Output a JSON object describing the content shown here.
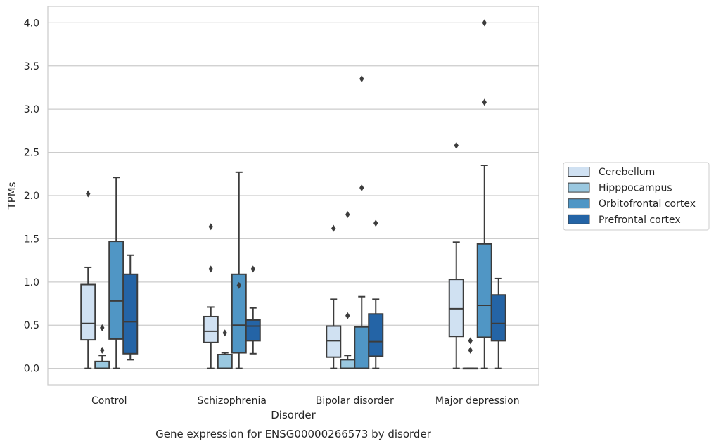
{
  "caption": "Gene expression for ENSG00000266573 by disorder",
  "chart_data": {
    "type": "box",
    "title": "",
    "xlabel": "Disorder",
    "ylabel": "TPMs",
    "ylim": [
      -0.19,
      4.19
    ],
    "yticks": [
      0.0,
      0.5,
      1.0,
      1.5,
      2.0,
      2.5,
      3.0,
      3.5,
      4.0
    ],
    "ytick_labels": [
      "0.0",
      "0.5",
      "1.0",
      "1.5",
      "2.0",
      "2.5",
      "3.0",
      "3.5",
      "4.0"
    ],
    "categories": [
      "Control",
      "Schizophrenia",
      "Bipolar disorder",
      "Major depression"
    ],
    "grid": "horizontal",
    "legend_position": "right",
    "series": [
      {
        "name": "Cerebellum",
        "color": "#d0e1f2",
        "boxes": [
          {
            "whislo": 0.0,
            "q1": 0.33,
            "med": 0.52,
            "q3": 0.97,
            "whishi": 1.17,
            "fliers": [
              2.02
            ]
          },
          {
            "whislo": 0.0,
            "q1": 0.3,
            "med": 0.43,
            "q3": 0.6,
            "whishi": 0.71,
            "fliers": [
              1.15,
              1.64
            ]
          },
          {
            "whislo": 0.0,
            "q1": 0.13,
            "med": 0.32,
            "q3": 0.49,
            "whishi": 0.8,
            "fliers": [
              1.62
            ]
          },
          {
            "whislo": 0.0,
            "q1": 0.37,
            "med": 0.69,
            "q3": 1.03,
            "whishi": 1.46,
            "fliers": [
              2.58
            ]
          }
        ]
      },
      {
        "name": "Hipppocampus",
        "color": "#9ac8e0",
        "boxes": [
          {
            "whislo": 0.0,
            "q1": 0.0,
            "med": 0.0,
            "q3": 0.08,
            "whishi": 0.15,
            "fliers": [
              0.21,
              0.47
            ]
          },
          {
            "whislo": 0.0,
            "q1": 0.0,
            "med": 0.0,
            "q3": 0.16,
            "whishi": 0.18,
            "fliers": [
              0.41
            ]
          },
          {
            "whislo": 0.0,
            "q1": 0.0,
            "med": 0.0,
            "q3": 0.1,
            "whishi": 0.15,
            "fliers": [
              0.61,
              1.78
            ]
          },
          {
            "whislo": 0.0,
            "q1": 0.0,
            "med": 0.0,
            "q3": 0.0,
            "whishi": 0.0,
            "fliers": [
              0.21,
              0.32
            ]
          }
        ]
      },
      {
        "name": "Orbitofrontal cortex",
        "color": "#5096c5",
        "boxes": [
          {
            "whislo": 0.0,
            "q1": 0.34,
            "med": 0.78,
            "q3": 1.47,
            "whishi": 2.21,
            "fliers": []
          },
          {
            "whislo": 0.0,
            "q1": 0.18,
            "med": 0.5,
            "q3": 1.09,
            "whishi": 2.27,
            "fliers": [
              0.96
            ]
          },
          {
            "whislo": 0.0,
            "q1": 0.0,
            "med": 0.0,
            "q3": 0.48,
            "whishi": 0.83,
            "fliers": [
              2.09,
              3.35
            ]
          },
          {
            "whislo": 0.0,
            "q1": 0.36,
            "med": 0.73,
            "q3": 1.44,
            "whishi": 2.35,
            "fliers": [
              3.08,
              4.0
            ]
          }
        ]
      },
      {
        "name": "Prefrontal cortex",
        "color": "#2464a6",
        "boxes": [
          {
            "whislo": 0.1,
            "q1": 0.17,
            "med": 0.54,
            "q3": 1.09,
            "whishi": 1.31,
            "fliers": []
          },
          {
            "whislo": 0.17,
            "q1": 0.32,
            "med": 0.49,
            "q3": 0.56,
            "whishi": 0.7,
            "fliers": [
              1.15
            ]
          },
          {
            "whislo": 0.0,
            "q1": 0.14,
            "med": 0.31,
            "q3": 0.63,
            "whishi": 0.8,
            "fliers": [
              1.68
            ]
          },
          {
            "whislo": 0.0,
            "q1": 0.32,
            "med": 0.52,
            "q3": 0.85,
            "whishi": 1.04,
            "fliers": []
          }
        ]
      }
    ]
  }
}
